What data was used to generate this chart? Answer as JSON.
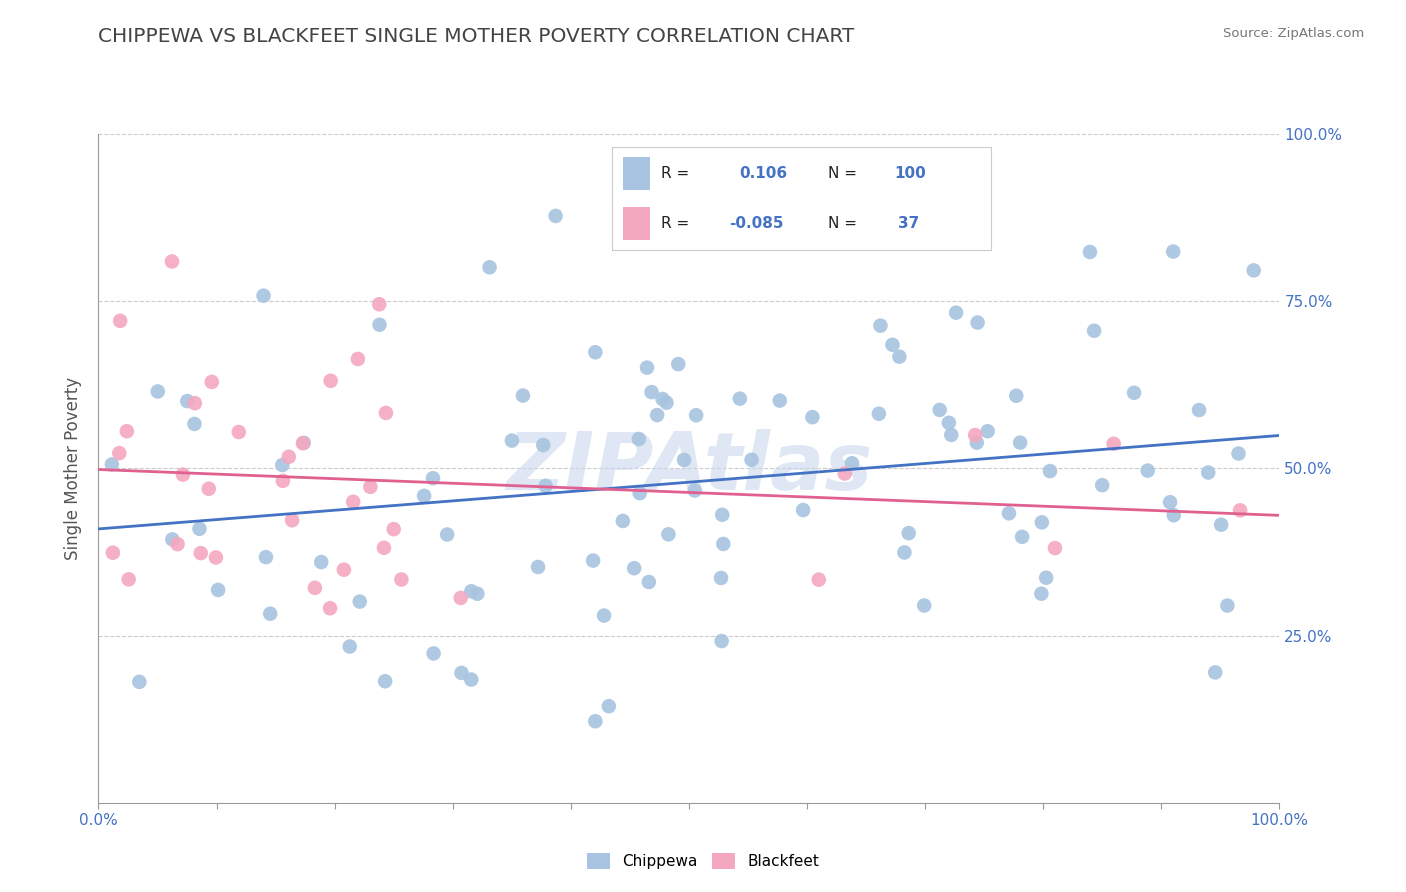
{
  "title": "CHIPPEWA VS BLACKFEET SINGLE MOTHER POVERTY CORRELATION CHART",
  "source": "Source: ZipAtlas.com",
  "ylabel": "Single Mother Poverty",
  "chippewa_R": 0.106,
  "chippewa_N": 100,
  "blackfeet_R": -0.085,
  "blackfeet_N": 37,
  "chippewa_color": "#a8c4e0",
  "blackfeet_color": "#f4a8c0",
  "chippewa_line_color": "#4472c4",
  "blackfeet_line_color": "#e06090",
  "watermark_color": "#c8d8ec",
  "title_color": "#444444",
  "legend_text_color": "#4472c4",
  "legend_label_color": "#222222",
  "ytick_color": "#4472c4",
  "xtick_color": "#4472c4",
  "background_color": "#ffffff",
  "grid_color": "#cccccc",
  "spine_color": "#999999"
}
